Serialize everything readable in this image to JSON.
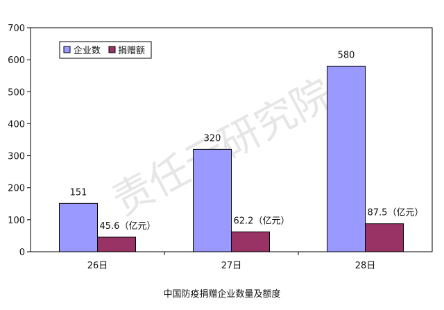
{
  "watermark": "责任云研究院",
  "chart_data": {
    "type": "bar",
    "title": "中国防疫捐赠企业数量及额度",
    "categories": [
      "26日",
      "27日",
      "28日"
    ],
    "series": [
      {
        "name": "企业数",
        "values": [
          151,
          320,
          580
        ],
        "labels": [
          "151",
          "320",
          "580"
        ],
        "color": "#9999ff"
      },
      {
        "name": "捐赠额",
        "values": [
          45.6,
          62.2,
          87.5
        ],
        "labels": [
          "45.6（亿元）",
          "62.2（亿元）",
          "87.5（亿元）"
        ],
        "color": "#993366"
      }
    ],
    "ylim": [
      0,
      700
    ],
    "yticks": [
      "0",
      "100",
      "200",
      "300",
      "400",
      "500",
      "600",
      "700"
    ],
    "xlabel": "",
    "ylabel": "",
    "legend_position": "top-left",
    "grid": false
  }
}
